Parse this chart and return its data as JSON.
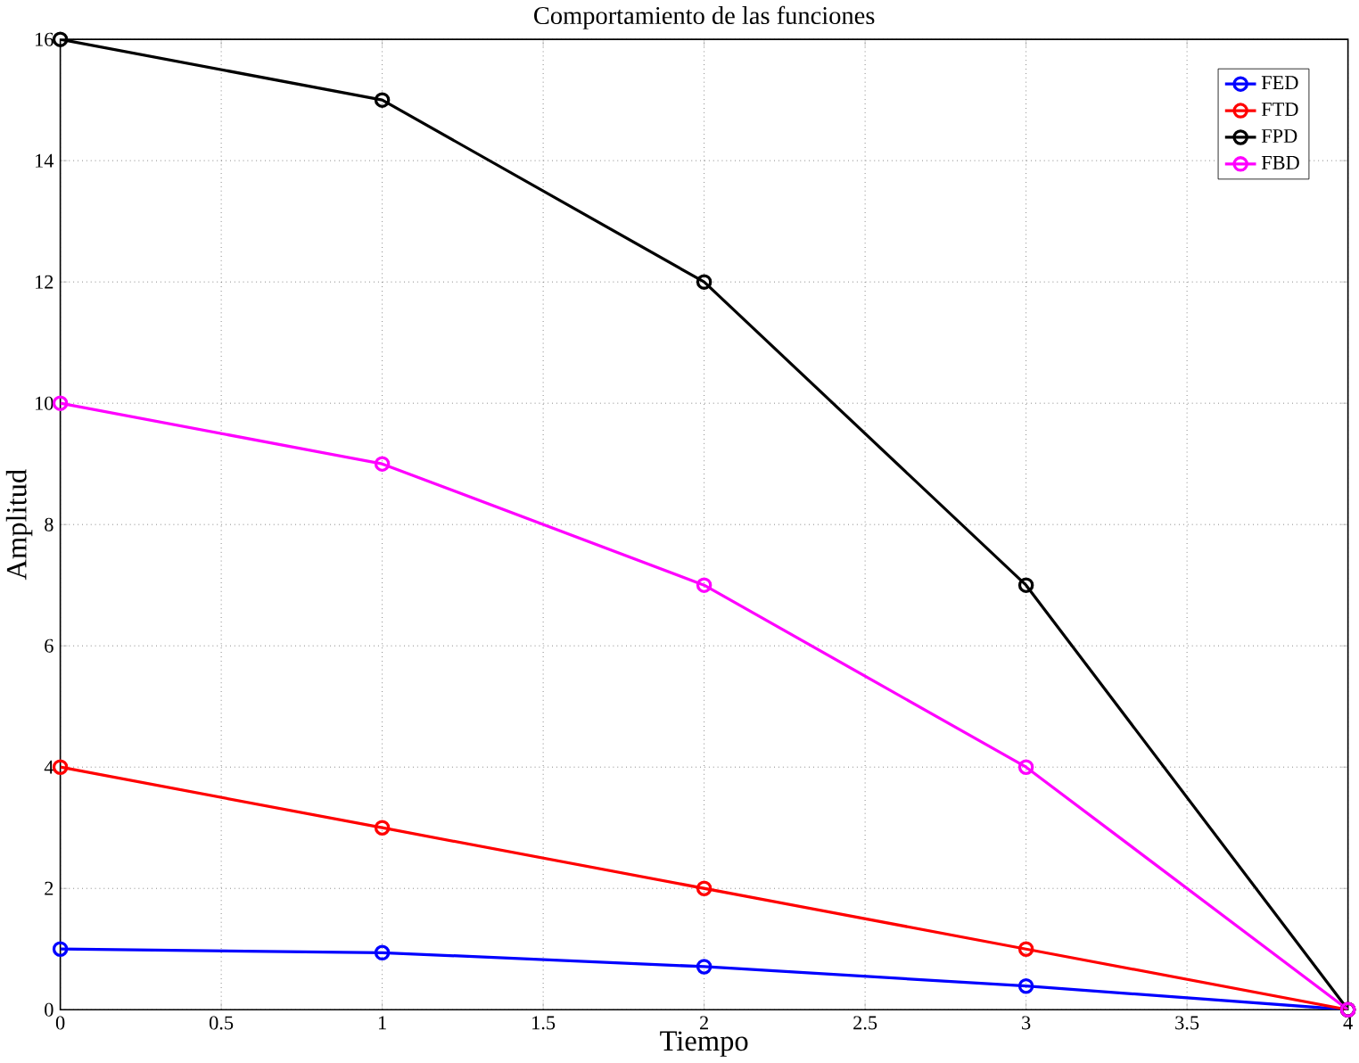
{
  "chart_data": {
    "type": "line",
    "title": "Comportamiento de las funciones",
    "xlabel": "Tiempo",
    "ylabel": "Amplitud",
    "x": [
      0,
      1,
      2,
      3,
      4
    ],
    "series": [
      {
        "name": "FED",
        "color": "#0000ff",
        "values": [
          1,
          0.94,
          0.71,
          0.39,
          0
        ]
      },
      {
        "name": "FTD",
        "color": "#ff0000",
        "values": [
          4,
          3,
          2,
          1,
          0
        ]
      },
      {
        "name": "FPD",
        "color": "#000000",
        "values": [
          16,
          15,
          12,
          7,
          0
        ]
      },
      {
        "name": "FBD",
        "color": "#ff00ff",
        "values": [
          10,
          9,
          7,
          4,
          0
        ]
      }
    ],
    "xlim": [
      0,
      4
    ],
    "ylim": [
      0,
      16
    ],
    "xticks": [
      0,
      0.5,
      1,
      1.5,
      2,
      2.5,
      3,
      3.5,
      4
    ],
    "yticks": [
      0,
      2,
      4,
      6,
      8,
      10,
      12,
      14,
      16
    ],
    "grid": true,
    "legend": "top right",
    "marker": "circle",
    "line_style": "solid"
  }
}
